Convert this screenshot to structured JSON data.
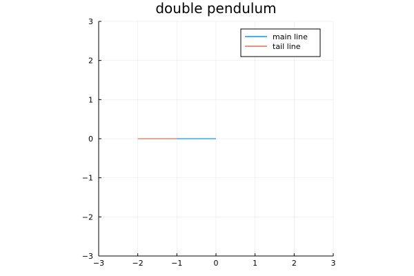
{
  "chart_data": {
    "type": "line",
    "title": "double pendulum",
    "xlabel": "",
    "ylabel": "",
    "xlim": [
      -3,
      3
    ],
    "ylim": [
      -3,
      3
    ],
    "xticks": [
      -3,
      -2,
      -1,
      0,
      1,
      2,
      3
    ],
    "yticks": [
      -3,
      -2,
      -1,
      0,
      1,
      2,
      3
    ],
    "xtick_labels": [
      "−3",
      "−2",
      "−1",
      "0",
      "1",
      "2",
      "3"
    ],
    "ytick_labels": [
      "−3",
      "−2",
      "−1",
      "0",
      "1",
      "2",
      "3"
    ],
    "grid": true,
    "legend_position": "top-right",
    "series": [
      {
        "name": "main line",
        "color": "#009AFA",
        "x": [
          0,
          -1
        ],
        "y": [
          0,
          0
        ]
      },
      {
        "name": "tail line",
        "color": "#E26F46",
        "x": [
          -1,
          -2
        ],
        "y": [
          0,
          0
        ]
      }
    ]
  }
}
